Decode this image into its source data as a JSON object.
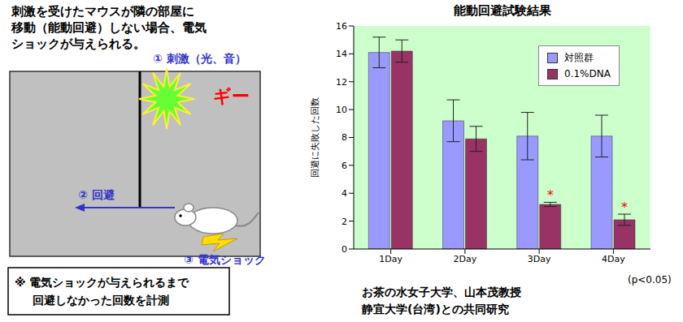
{
  "diagram": {
    "description": [
      "刺激を受けたマウスが隣の部屋に",
      "移動（能動回避）しない場合、電気",
      "ショックが与えられる。"
    ],
    "labels": {
      "stimulus": "① 刺激（光、音）",
      "sound": "ギー",
      "avoid": "② 回避",
      "shock": "③ 電気ショック"
    },
    "note": [
      "※ 電気ショックが与えられるまで",
      "回避しなかった回数を計測"
    ]
  },
  "chart_data": {
    "type": "bar",
    "title": "能動回避試験結果",
    "y_label": "回避に失敗した回数",
    "categories": [
      "1Day",
      "2Day",
      "3Day",
      "4Day"
    ],
    "series": [
      {
        "name": "対照群",
        "color": "#9999ff",
        "values": [
          14.1,
          9.2,
          8.1,
          8.1
        ],
        "error": [
          1.1,
          1.5,
          1.7,
          1.5
        ]
      },
      {
        "name": "0.1%DNA",
        "color": "#993366",
        "values": [
          14.2,
          7.9,
          3.2,
          2.1
        ],
        "error": [
          0.8,
          0.9,
          0.15,
          0.4
        ],
        "significance": [
          null,
          null,
          "*",
          "*"
        ]
      }
    ],
    "ylim": [
      0,
      16
    ],
    "yticks": [
      0,
      2,
      4,
      6,
      8,
      10,
      12,
      14,
      16
    ],
    "grid": false,
    "annotations": [
      "(p<0.05)"
    ],
    "source": [
      "お茶の水女子大学、山本茂教授",
      "静宜大学(台湾)との共同研究"
    ]
  }
}
